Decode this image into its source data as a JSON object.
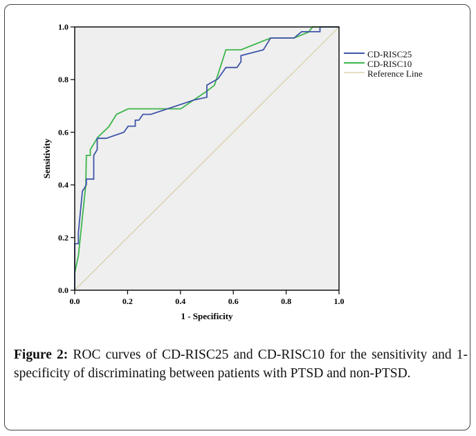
{
  "chart_data": {
    "type": "line",
    "title": "",
    "xlabel": "1 - Specificity",
    "ylabel": "Sensitivity",
    "xlim": [
      0,
      1
    ],
    "ylim": [
      0,
      1
    ],
    "xticks": [
      "0.0",
      "0.2",
      "0.4",
      "0.6",
      "0.8",
      "1.0"
    ],
    "yticks": [
      "0.0",
      "0.2",
      "0.4",
      "0.6",
      "0.8",
      "1.0"
    ],
    "grid": false,
    "legend_position": "right",
    "background_color": "#efefef",
    "series": [
      {
        "name": "CD-RISC25",
        "color": "#3f55a8",
        "x": [
          0,
          0,
          0.014,
          0.014,
          0.029,
          0.035,
          0.044,
          0.044,
          0.072,
          0.072,
          0.085,
          0.085,
          0.119,
          0.186,
          0.202,
          0.229,
          0.229,
          0.243,
          0.258,
          0.288,
          0.45,
          0.5,
          0.5,
          0.542,
          0.572,
          0.614,
          0.629,
          0.629,
          0.714,
          0.741,
          0.83,
          0.858,
          0.928,
          0.928,
          1.0
        ],
        "y": [
          0,
          0.177,
          0.177,
          0.219,
          0.376,
          0.385,
          0.401,
          0.422,
          0.422,
          0.512,
          0.534,
          0.577,
          0.577,
          0.6,
          0.623,
          0.623,
          0.646,
          0.646,
          0.668,
          0.668,
          0.722,
          0.733,
          0.779,
          0.803,
          0.846,
          0.846,
          0.868,
          0.891,
          0.913,
          0.958,
          0.958,
          0.982,
          0.982,
          1.0,
          1.0
        ]
      },
      {
        "name": "CD-RISC10",
        "color": "#3cb54a",
        "x": [
          0,
          0,
          0.014,
          0.042,
          0.044,
          0.059,
          0.059,
          0.088,
          0.129,
          0.158,
          0.202,
          0.401,
          0.501,
          0.529,
          0.572,
          0.629,
          0.741,
          0.83,
          0.884,
          0.9,
          1.0
        ],
        "y": [
          0,
          0.066,
          0.131,
          0.4,
          0.512,
          0.512,
          0.534,
          0.582,
          0.621,
          0.668,
          0.689,
          0.689,
          0.757,
          0.779,
          0.913,
          0.913,
          0.958,
          0.958,
          0.98,
          1.0,
          1.0
        ]
      },
      {
        "name": "Reference Line",
        "color": "#d8cc9c",
        "x": [
          0,
          1
        ],
        "y": [
          0,
          1
        ]
      }
    ]
  },
  "caption": {
    "label": "Figure 2:",
    "text": " ROC curves of CD-RISC25 and CD-RISC10 for the sensitivity and 1-specificity of discriminating between patients with PTSD and non-PTSD."
  }
}
